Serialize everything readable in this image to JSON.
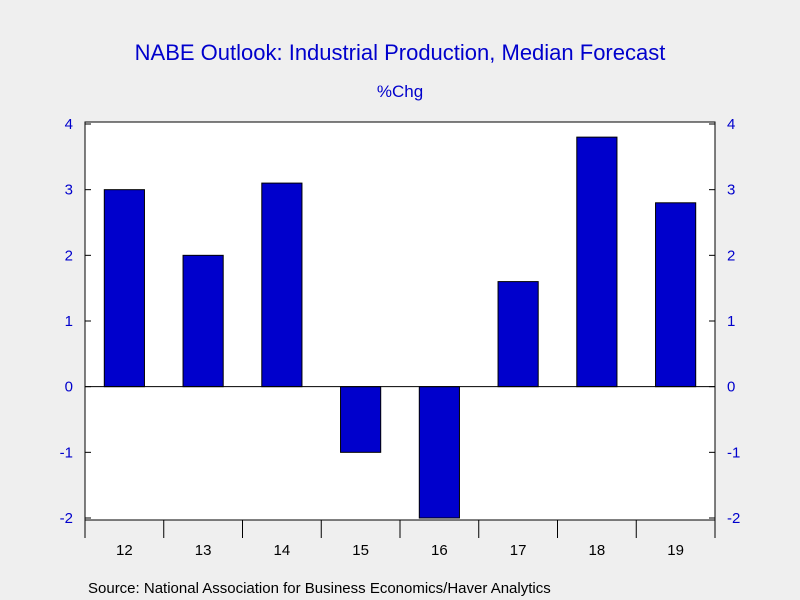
{
  "chart_data": {
    "type": "bar",
    "title": "NABE Outlook: Industrial Production, Median Forecast",
    "subtitle": "%Chg",
    "categories": [
      "12",
      "13",
      "14",
      "15",
      "16",
      "17",
      "18",
      "19"
    ],
    "values": [
      3.0,
      2.0,
      3.1,
      -1.0,
      -2.0,
      1.6,
      3.8,
      2.8
    ],
    "ylim": [
      -2,
      4
    ],
    "yticks": [
      "-2",
      "-1",
      "0",
      "1",
      "2",
      "3",
      "4"
    ],
    "xlabel": "",
    "ylabel": "",
    "grid": false,
    "bar_color": "#0000cc",
    "source": "Source:  National Association for Business Economics/Haver Analytics"
  }
}
